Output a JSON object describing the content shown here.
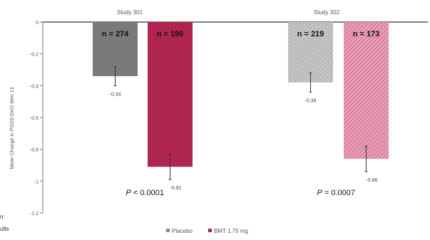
{
  "chart_data": {
    "type": "bar",
    "title": "",
    "ylabel": "Mean Change in PSDS-DAO Item 13",
    "ylim": [
      -1.2,
      0
    ],
    "yticks": [
      0,
      -0.2,
      -0.4,
      -0.6,
      -0.8,
      -1,
      -1.2
    ],
    "grid": false,
    "legend_position": "bottom",
    "groups": [
      {
        "name": "Study 301",
        "p_value_prefix": "P",
        "p_value_text": " < 0.0001",
        "bars": [
          {
            "series": "Placebo",
            "value": -0.34,
            "label": "-0.34",
            "n_label": "n = 274",
            "error": 0.06,
            "color": "#7a7a7a",
            "pattern": "solid"
          },
          {
            "series": "BMT 1.75 mg",
            "value": -0.91,
            "label": "-0.91",
            "n_label": "n = 190",
            "error": 0.08,
            "color": "#b0254f",
            "pattern": "solid"
          }
        ]
      },
      {
        "name": "Study 302",
        "p_value_prefix": "P",
        "p_value_text": " = 0.0007",
        "bars": [
          {
            "series": "Placebo",
            "value": -0.38,
            "label": "-0.38",
            "n_label": "n = 219",
            "error": 0.06,
            "color": "#b8b8b8",
            "pattern": "hatch"
          },
          {
            "series": "BMT 1.75 mg",
            "value": -0.86,
            "label": "-0.86",
            "n_label": "n = 173",
            "error": 0.08,
            "color": "#dd7f9c",
            "pattern": "hatch"
          }
        ]
      }
    ],
    "series": [
      {
        "name": "Placebo",
        "color": "#8a8a8a"
      },
      {
        "name": "BMT 1.75 mg",
        "color": "#b0254f"
      }
    ]
  },
  "side_text": [
    "n:",
    "ults"
  ]
}
